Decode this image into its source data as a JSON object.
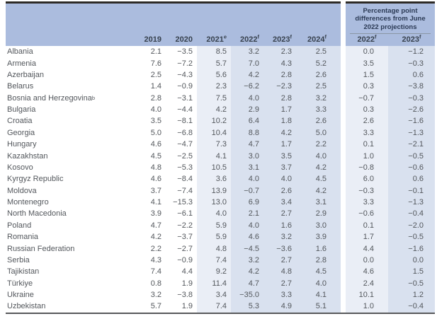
{
  "colors": {
    "header_blue": "#abbcde",
    "band_light": "#eaeef6",
    "band_dark": "#d9e1ef",
    "top_rule": "#2d2a26",
    "bottom_rule": "#58595b",
    "body_text": "#53575c",
    "header_text": "#38424f",
    "panel_title_text": "#2b3a55"
  },
  "diff_panel": {
    "title": "Percentage point differences from June 2022 projections",
    "columns": [
      {
        "label": "2022",
        "sup": "f"
      },
      {
        "label": "2023",
        "sup": "f"
      }
    ]
  },
  "chart_data": {
    "type": "table",
    "year_columns": [
      {
        "label": "2019",
        "sup": ""
      },
      {
        "label": "2020",
        "sup": ""
      },
      {
        "label": "2021",
        "sup": "e"
      },
      {
        "label": "2022",
        "sup": "f"
      },
      {
        "label": "2023",
        "sup": "f"
      },
      {
        "label": "2024",
        "sup": "f"
      }
    ],
    "rows": [
      {
        "country": "Albania",
        "sup": "",
        "values": [
          "2.1",
          "−3.5",
          "8.5",
          "3.2",
          "2.3",
          "2.5"
        ],
        "diffs": [
          "0.0",
          "−1.2"
        ]
      },
      {
        "country": "Armenia",
        "sup": "",
        "values": [
          "7.6",
          "−7.2",
          "5.7",
          "7.0",
          "4.3",
          "5.2"
        ],
        "diffs": [
          "3.5",
          "−0.3"
        ]
      },
      {
        "country": "Azerbaijan",
        "sup": "",
        "values": [
          "2.5",
          "−4.3",
          "5.6",
          "4.2",
          "2.8",
          "2.6"
        ],
        "diffs": [
          "1.5",
          "0.6"
        ]
      },
      {
        "country": "Belarus",
        "sup": "",
        "values": [
          "1.4",
          "−0.9",
          "2.3",
          "−6.2",
          "−2.3",
          "2.5"
        ],
        "diffs": [
          "0.3",
          "−3.8"
        ]
      },
      {
        "country": "Bosnia and Herzegovina",
        "sup": "b",
        "values": [
          "2.8",
          "−3.1",
          "7.5",
          "4.0",
          "2.8",
          "3.2"
        ],
        "diffs": [
          "−0.7",
          "−0.3"
        ]
      },
      {
        "country": "Bulgaria",
        "sup": "",
        "values": [
          "4.0",
          "−4.4",
          "4.2",
          "2.9",
          "1.7",
          "3.3"
        ],
        "diffs": [
          "0.3",
          "−2.6"
        ]
      },
      {
        "country": "Croatia",
        "sup": "",
        "values": [
          "3.5",
          "−8.1",
          "10.2",
          "6.4",
          "1.8",
          "2.6"
        ],
        "diffs": [
          "2.6",
          "−1.6"
        ]
      },
      {
        "country": "Georgia",
        "sup": "",
        "values": [
          "5.0",
          "−6.8",
          "10.4",
          "8.8",
          "4.2",
          "5.0"
        ],
        "diffs": [
          "3.3",
          "−1.3"
        ]
      },
      {
        "country": "Hungary",
        "sup": "",
        "values": [
          "4.6",
          "−4.7",
          "7.3",
          "4.7",
          "1.7",
          "2.2"
        ],
        "diffs": [
          "0.1",
          "−2.1"
        ]
      },
      {
        "country": "Kazakhstan",
        "sup": "",
        "values": [
          "4.5",
          "−2.5",
          "4.1",
          "3.0",
          "3.5",
          "4.0"
        ],
        "diffs": [
          "1.0",
          "−0.5"
        ]
      },
      {
        "country": "Kosovo",
        "sup": "",
        "values": [
          "4.8",
          "−5.3",
          "10.5",
          "3.1",
          "3.7",
          "4.2"
        ],
        "diffs": [
          "−0.8",
          "−0.6"
        ]
      },
      {
        "country": "Kyrgyz Republic",
        "sup": "",
        "values": [
          "4.6",
          "−8.4",
          "3.6",
          "4.0",
          "4.0",
          "4.5"
        ],
        "diffs": [
          "6.0",
          "0.6"
        ]
      },
      {
        "country": "Moldova",
        "sup": "",
        "values": [
          "3.7",
          "−7.4",
          "13.9",
          "−0.7",
          "2.6",
          "4.2"
        ],
        "diffs": [
          "−0.3",
          "−0.1"
        ]
      },
      {
        "country": "Montenegro",
        "sup": "",
        "values": [
          "4.1",
          "−15.3",
          "13.0",
          "6.9",
          "3.4",
          "3.1"
        ],
        "diffs": [
          "3.3",
          "−1.3"
        ]
      },
      {
        "country": "North Macedonia",
        "sup": "",
        "values": [
          "3.9",
          "−6.1",
          "4.0",
          "2.1",
          "2.7",
          "2.9"
        ],
        "diffs": [
          "−0.6",
          "−0.4"
        ]
      },
      {
        "country": "Poland",
        "sup": "",
        "values": [
          "4.7",
          "−2.2",
          "5.9",
          "4.0",
          "1.6",
          "3.0"
        ],
        "diffs": [
          "0.1",
          "−2.0"
        ]
      },
      {
        "country": "Romania",
        "sup": "",
        "values": [
          "4.2",
          "−3.7",
          "5.9",
          "4.6",
          "3.2",
          "3.9"
        ],
        "diffs": [
          "1.7",
          "−0.5"
        ]
      },
      {
        "country": "Russian Federation",
        "sup": "",
        "values": [
          "2.2",
          "−2.7",
          "4.8",
          "−4.5",
          "−3.6",
          "1.6"
        ],
        "diffs": [
          "4.4",
          "−1.6"
        ]
      },
      {
        "country": "Serbia",
        "sup": "",
        "values": [
          "4.3",
          "−0.9",
          "7.4",
          "3.2",
          "2.7",
          "2.8"
        ],
        "diffs": [
          "0.0",
          "0.0"
        ]
      },
      {
        "country": "Tajikistan",
        "sup": "",
        "values": [
          "7.4",
          "4.4",
          "9.2",
          "4.2",
          "4.8",
          "4.5"
        ],
        "diffs": [
          "4.6",
          "1.5"
        ]
      },
      {
        "country": "Türkiye",
        "sup": "",
        "values": [
          "0.8",
          "1.9",
          "11.4",
          "4.7",
          "2.7",
          "4.0"
        ],
        "diffs": [
          "2.4",
          "−0.5"
        ]
      },
      {
        "country": "Ukraine",
        "sup": "",
        "values": [
          "3.2",
          "−3.8",
          "3.4",
          "−35.0",
          "3.3",
          "4.1"
        ],
        "diffs": [
          "10.1",
          "1.2"
        ]
      },
      {
        "country": "Uzbekistan",
        "sup": "",
        "values": [
          "5.7",
          "1.9",
          "7.4",
          "5.3",
          "4.9",
          "5.1"
        ],
        "diffs": [
          "1.0",
          "−0.4"
        ]
      }
    ]
  }
}
